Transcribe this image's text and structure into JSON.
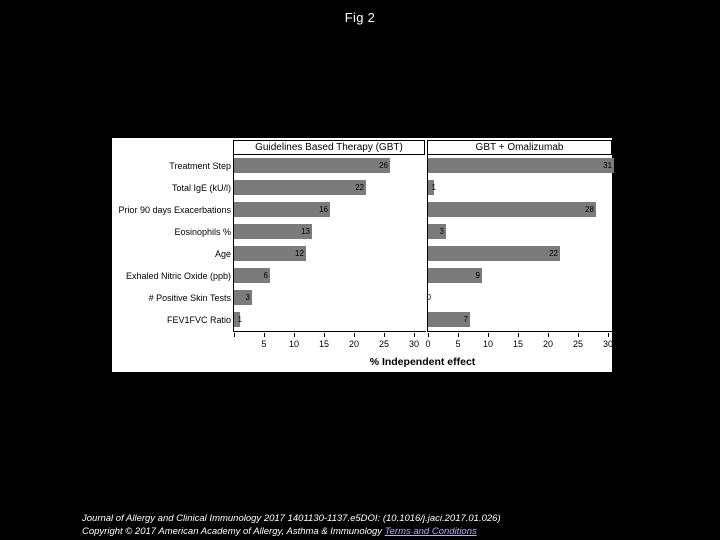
{
  "page": {
    "title": "Fig 2"
  },
  "chart_data": {
    "type": "bar",
    "orientation": "horizontal",
    "categories": [
      "Treatment Step",
      "Total IgE (kU/l)",
      "Prior 90 days Exacerbations",
      "Eosinophils %",
      "Age",
      "Exhaled Nitric Oxide (ppb)",
      "# Positive Skin Tests",
      "FEV1FVC Ratio"
    ],
    "series": [
      {
        "name": "Guidelines Based Therapy (GBT)",
        "values": [
          26,
          22,
          16,
          13,
          12,
          6,
          3,
          1
        ]
      },
      {
        "name": "GBT + Omalizumab",
        "values": [
          31,
          1,
          28,
          3,
          22,
          9,
          0,
          7
        ]
      }
    ],
    "xlabel": "% Independent effect",
    "xticks": [
      5,
      10,
      15,
      20,
      25,
      30
    ],
    "xlim": [
      0,
      32
    ],
    "value_labels": true,
    "grid": false,
    "legend_position": "panel-headers",
    "bar_color": "#7b7b7b"
  },
  "footer": {
    "line1": "Journal of Allergy and Clinical Immunology 2017 1401130-1137.e5DOI: (10.1016/j.jaci.2017.01.026)",
    "line2_prefix": "Copyright © 2017 American Academy of Allergy, Asthma & Immunology ",
    "link_text": "Terms and Conditions"
  },
  "colors": {
    "page_bg": "#000000",
    "figure_bg": "#ffffff",
    "bar": "#7b7b7b",
    "axis": "#000000",
    "link": "#b4b4f0"
  }
}
